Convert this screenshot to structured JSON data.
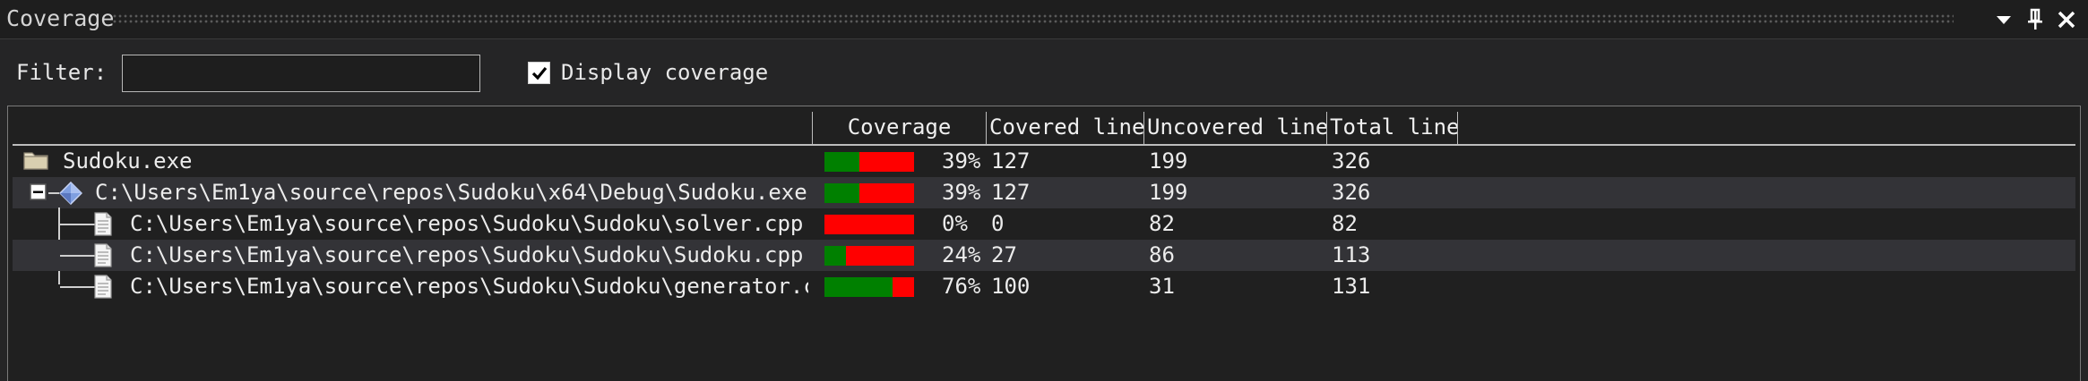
{
  "window": {
    "title": "Coverage"
  },
  "filter": {
    "label": "Filter:",
    "value": "",
    "placeholder": ""
  },
  "display_coverage": {
    "label": "Display coverage",
    "checked": true
  },
  "columns": {
    "coverage": "Coverage",
    "covered": "Covered line",
    "uncovered": "Uncovered line",
    "total": "Total line"
  },
  "colors": {
    "covered": "#008000",
    "uncovered": "#ff0000"
  },
  "rows": [
    {
      "name": "Sudoku.exe",
      "icon": "folder-icon",
      "coverage_pct": 39,
      "coverage_label": "39%",
      "covered": "127",
      "uncovered": "199",
      "total": "326"
    },
    {
      "name": "C:\\Users\\Em1ya\\source\\repos\\Sudoku\\x64\\Debug\\Sudoku.exe",
      "icon": "module-icon",
      "coverage_pct": 39,
      "coverage_label": "39%",
      "covered": "127",
      "uncovered": "199",
      "total": "326"
    },
    {
      "name": "C:\\Users\\Em1ya\\source\\repos\\Sudoku\\Sudoku\\solver.cpp",
      "icon": "file-icon",
      "coverage_pct": 0,
      "coverage_label": "0%",
      "covered": "0",
      "uncovered": "82",
      "total": "82"
    },
    {
      "name": "C:\\Users\\Em1ya\\source\\repos\\Sudoku\\Sudoku\\Sudoku.cpp",
      "icon": "file-icon",
      "coverage_pct": 24,
      "coverage_label": "24%",
      "covered": "27",
      "uncovered": "86",
      "total": "113"
    },
    {
      "name": "C:\\Users\\Em1ya\\source\\repos\\Sudoku\\Sudoku\\generator.c",
      "icon": "file-icon",
      "coverage_pct": 76,
      "coverage_label": "76%",
      "covered": "100",
      "uncovered": "31",
      "total": "131"
    }
  ]
}
